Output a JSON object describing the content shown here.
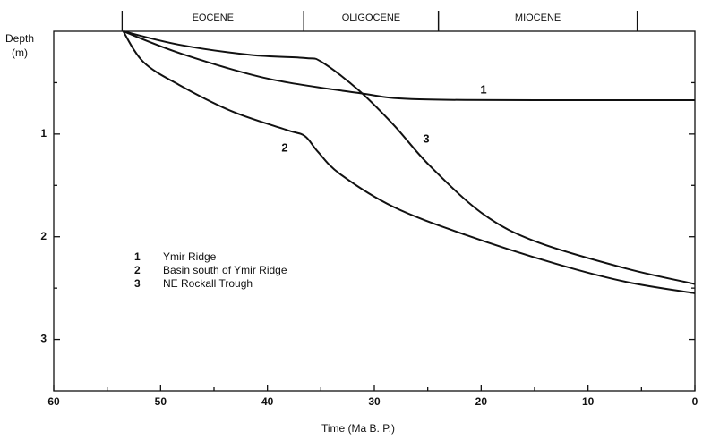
{
  "chart_data": {
    "type": "line",
    "ylabel": [
      "Depth",
      "(m)"
    ],
    "xlabel": "Time (Ma B. P.)",
    "xlim": [
      60,
      0
    ],
    "xticks": [
      60,
      50,
      40,
      30,
      20,
      10,
      0
    ],
    "xminor": [
      55,
      45,
      35,
      25,
      15,
      5
    ],
    "ylim": [
      3.5,
      0
    ],
    "yticks": [
      1,
      2,
      3
    ],
    "yminor": [
      0.5,
      1.5,
      2.5
    ],
    "epochs": [
      {
        "name": "EOCENE",
        "start": 53.6,
        "end": 36.6
      },
      {
        "name": "OLIGOCENE",
        "start": 36.6,
        "end": 24.0
      },
      {
        "name": "MIOCENE",
        "start": 24.0,
        "end": 5.4
      }
    ],
    "series": [
      {
        "label": "1",
        "name": "Ymir Ridge",
        "color": "#111111",
        "x": [
          53.5,
          48,
          40,
          31.5,
          26.5,
          15,
          0
        ],
        "values": [
          0,
          0.22,
          0.46,
          0.6,
          0.66,
          0.67,
          0.67
        ]
      },
      {
        "label": "2",
        "name": "Basin south of Ymir Ridge",
        "color": "#111111",
        "x": [
          53.5,
          51.6,
          48.3,
          43.3,
          38.2,
          36.5,
          35.3,
          33.2,
          28.2,
          21.5,
          13.1,
          6.4,
          0
        ],
        "values": [
          0,
          0.3,
          0.52,
          0.78,
          0.96,
          1.02,
          1.17,
          1.39,
          1.71,
          1.98,
          2.26,
          2.44,
          2.55
        ]
      },
      {
        "label": "3",
        "name": "NE Rockall Trough",
        "color": "#111111",
        "x": [
          53.5,
          48.3,
          41.6,
          36.5,
          34.9,
          31.5,
          28.2,
          24.8,
          19.8,
          14.8,
          6.4,
          0
        ],
        "values": [
          0,
          0.13,
          0.23,
          0.26,
          0.3,
          0.57,
          0.91,
          1.31,
          1.78,
          2.05,
          2.31,
          2.46
        ]
      }
    ]
  }
}
